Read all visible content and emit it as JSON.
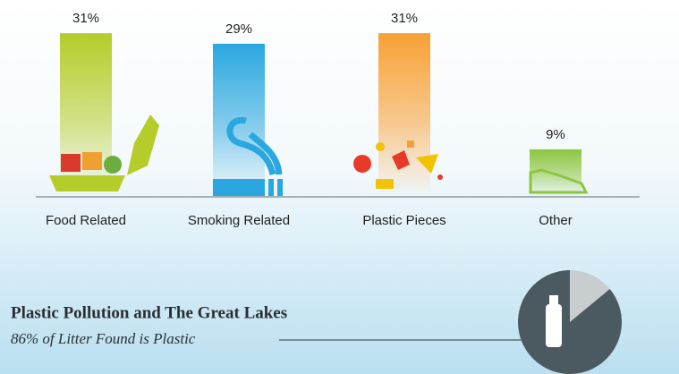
{
  "chart_data": [
    {
      "type": "bar",
      "categories": [
        "Food Related",
        "Smoking Related",
        "Plastic Pieces",
        "Other"
      ],
      "values": [
        31,
        29,
        31,
        9
      ],
      "value_labels": [
        "31%",
        "29%",
        "31%",
        "9%"
      ],
      "colors": [
        "#b5cc2a",
        "#2aa7df",
        "#f7a035",
        "#8cc63f"
      ]
    },
    {
      "type": "pie",
      "title": "Plastic Pollution and The Great Lakes",
      "subtitle": "86% of Litter Found is Plastic",
      "values": [
        86
      ],
      "color": "#4b5961"
    }
  ]
}
